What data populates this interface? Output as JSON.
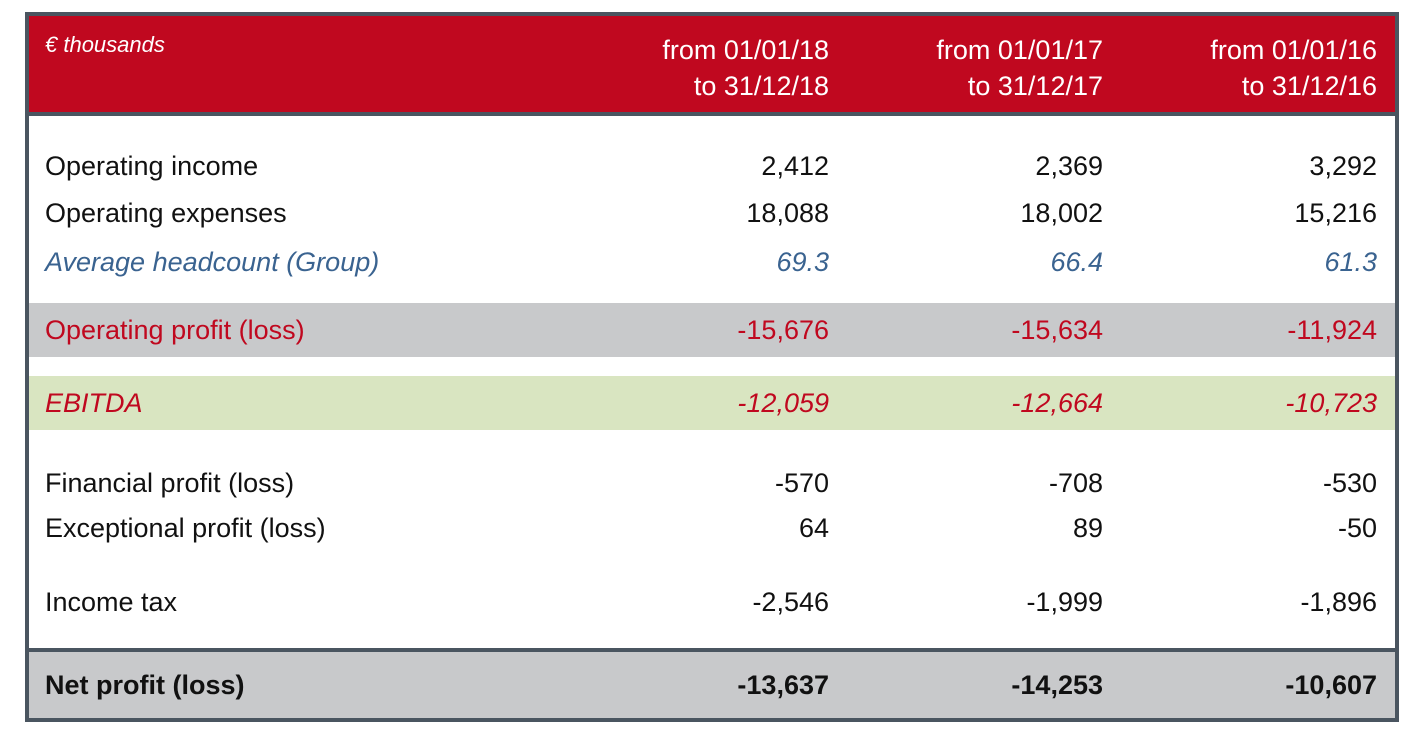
{
  "header": {
    "units": "€ thousands",
    "periods": [
      {
        "line1": "from 01/01/18",
        "line2": "to 31/12/18"
      },
      {
        "line1": "from 01/01/17",
        "line2": "to 31/12/17"
      },
      {
        "line1": "from 01/01/16",
        "line2": "to 31/12/16"
      }
    ]
  },
  "rows": {
    "operating_income": {
      "label": "Operating income",
      "values": [
        "2,412",
        "2,369",
        "3,292"
      ]
    },
    "operating_expenses": {
      "label": "Operating expenses",
      "values": [
        "18,088",
        "18,002",
        "15,216"
      ]
    },
    "average_headcount": {
      "label": "Average headcount (Group)",
      "values": [
        "69.3",
        "66.4",
        "61.3"
      ]
    },
    "operating_profit": {
      "label": "Operating profit (loss)",
      "values": [
        "-15,676",
        "-15,634",
        "-11,924"
      ]
    },
    "ebitda": {
      "label": "EBITDA",
      "values": [
        "-12,059",
        "-12,664",
        "-10,723"
      ]
    },
    "financial_profit": {
      "label": "Financial profit (loss)",
      "values": [
        "-570",
        "-708",
        "-530"
      ]
    },
    "exceptional_profit": {
      "label": "Exceptional profit (loss)",
      "values": [
        "64",
        "89",
        "-50"
      ]
    },
    "income_tax": {
      "label": "Income tax",
      "values": [
        "-2,546",
        "-1,999",
        "-1,896"
      ]
    },
    "net_profit": {
      "label": "Net profit (loss)",
      "values": [
        "-13,637",
        "-14,253",
        "-10,607"
      ]
    }
  },
  "colors": {
    "header_red": "#c0081f",
    "frame_dark": "#4a5560",
    "grey_band": "#c8c9cb",
    "green_band": "#d9e5c1",
    "headcount_blue": "#3a6390"
  }
}
